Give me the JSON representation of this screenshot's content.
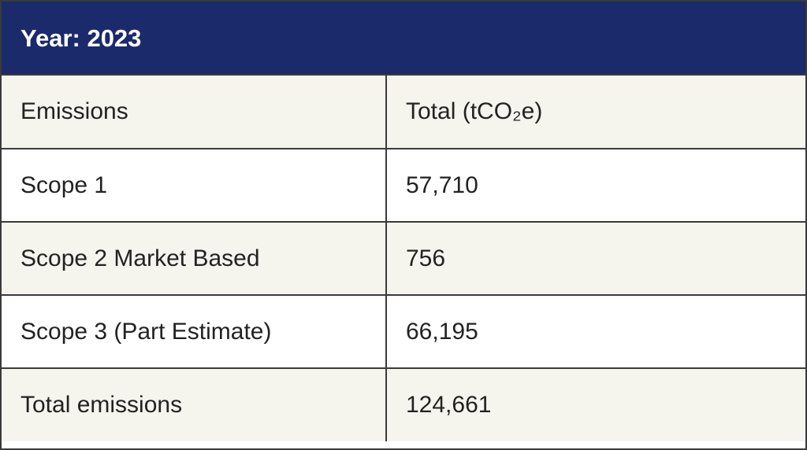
{
  "header": {
    "title": "Year: 2023"
  },
  "table": {
    "columns": [
      "Emissions",
      "Total (tCO₂e)"
    ],
    "rows": [
      [
        "Scope 1",
        "57,710"
      ],
      [
        "Scope 2 Market Based",
        "756"
      ],
      [
        "Scope 3 (Part Estimate)",
        "66,195"
      ],
      [
        "Total emissions",
        "124,661"
      ]
    ]
  }
}
